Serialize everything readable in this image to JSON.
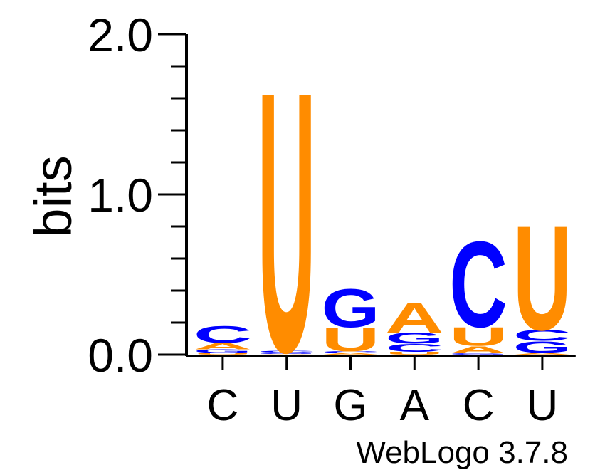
{
  "chart_data": {
    "type": "sequence-logo",
    "ylabel": "bits",
    "ylim": [
      0,
      2.0
    ],
    "y_ticks": [
      "0.0",
      "1.0",
      "2.0"
    ],
    "y_tick_values": [
      0,
      1,
      2
    ],
    "colors": {
      "U": "#FF8C00",
      "A": "#FF8C00",
      "C": "#0000FF",
      "G": "#0000FF"
    },
    "positions": [
      {
        "label": "C",
        "stack": [
          {
            "letter": "U",
            "bits": 0.012
          },
          {
            "letter": "G",
            "bits": 0.022
          },
          {
            "letter": "A",
            "bits": 0.04
          },
          {
            "letter": "C",
            "bits": 0.11
          }
        ]
      },
      {
        "label": "U",
        "stack": [
          {
            "letter": "A",
            "bits": 0.004
          },
          {
            "letter": "G",
            "bits": 0.01
          },
          {
            "letter": "C",
            "bits": 0.012
          },
          {
            "letter": "U",
            "bits": 1.67
          }
        ]
      },
      {
        "label": "G",
        "stack": [
          {
            "letter": "A",
            "bits": 0.012
          },
          {
            "letter": "C",
            "bits": 0.01
          },
          {
            "letter": "U",
            "bits": 0.15
          },
          {
            "letter": "G",
            "bits": 0.245
          }
        ]
      },
      {
        "label": "A",
        "stack": [
          {
            "letter": "U",
            "bits": 0.018
          },
          {
            "letter": "C",
            "bits": 0.05
          },
          {
            "letter": "G",
            "bits": 0.07
          },
          {
            "letter": "A",
            "bits": 0.19
          }
        ]
      },
      {
        "label": "C",
        "stack": [
          {
            "letter": "G",
            "bits": 0.01
          },
          {
            "letter": "A",
            "bits": 0.045
          },
          {
            "letter": "U",
            "bits": 0.12
          },
          {
            "letter": "C",
            "bits": 0.55
          }
        ]
      },
      {
        "label": "U",
        "stack": [
          {
            "letter": "A",
            "bits": 0.012
          },
          {
            "letter": "G",
            "bits": 0.075
          },
          {
            "letter": "C",
            "bits": 0.07
          },
          {
            "letter": "U",
            "bits": 0.67
          }
        ]
      }
    ]
  },
  "footer": "WebLogo 3.7.8"
}
